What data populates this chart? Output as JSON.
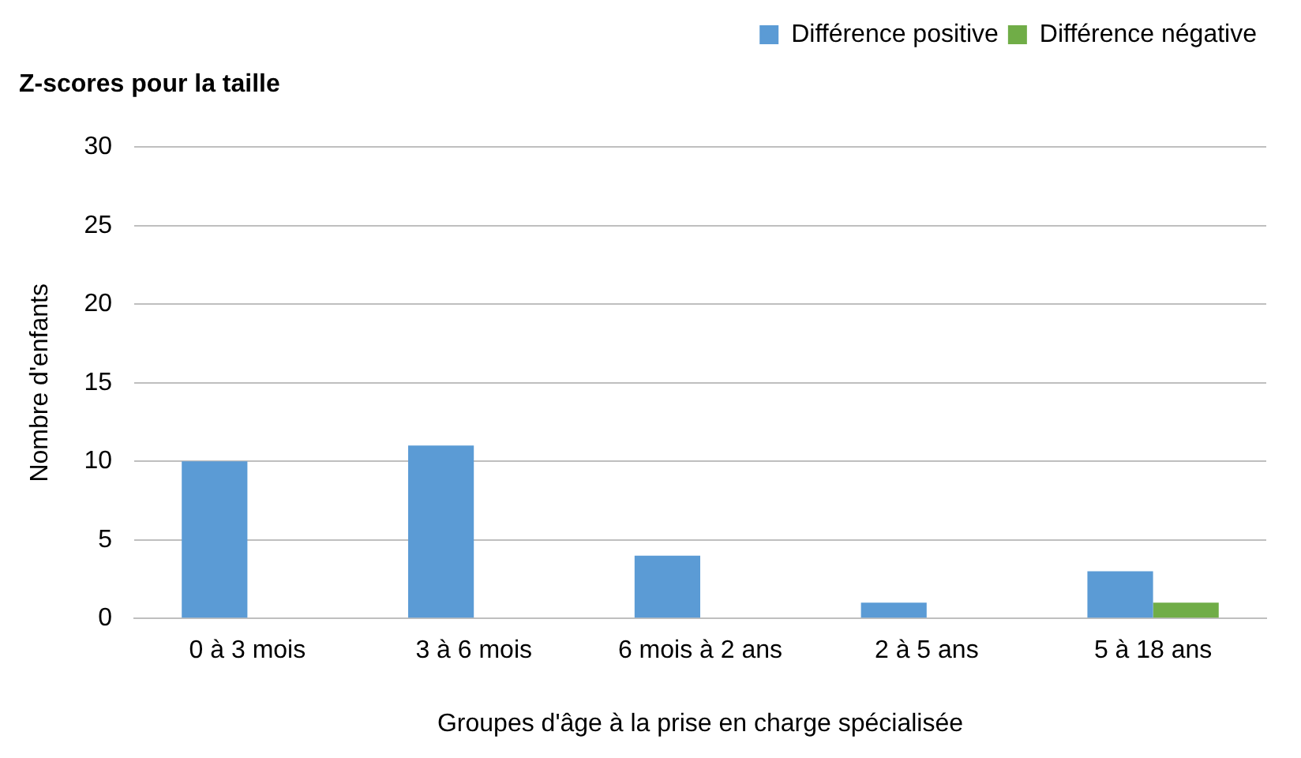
{
  "chart_data": {
    "type": "bar",
    "title": "Z-scores pour la taille",
    "xlabel": "Groupes d'âge à la prise en charge spécialisée",
    "ylabel": "Nombre d'enfants",
    "categories": [
      "0 à 3 mois",
      "3 à 6 mois",
      "6 mois à 2 ans",
      "2 à 5 ans",
      "5 à 18 ans"
    ],
    "series": [
      {
        "name": "Différence positive",
        "color": "#5b9bd5",
        "values": [
          10,
          11,
          4,
          1,
          3
        ]
      },
      {
        "name": "Différence négative",
        "color": "#70ad47",
        "values": [
          0,
          0,
          0,
          0,
          1
        ]
      }
    ],
    "ylim": [
      0,
      30
    ],
    "yticks": [
      0,
      5,
      10,
      15,
      20,
      25,
      30
    ],
    "grid": "y",
    "legend": "top right"
  }
}
